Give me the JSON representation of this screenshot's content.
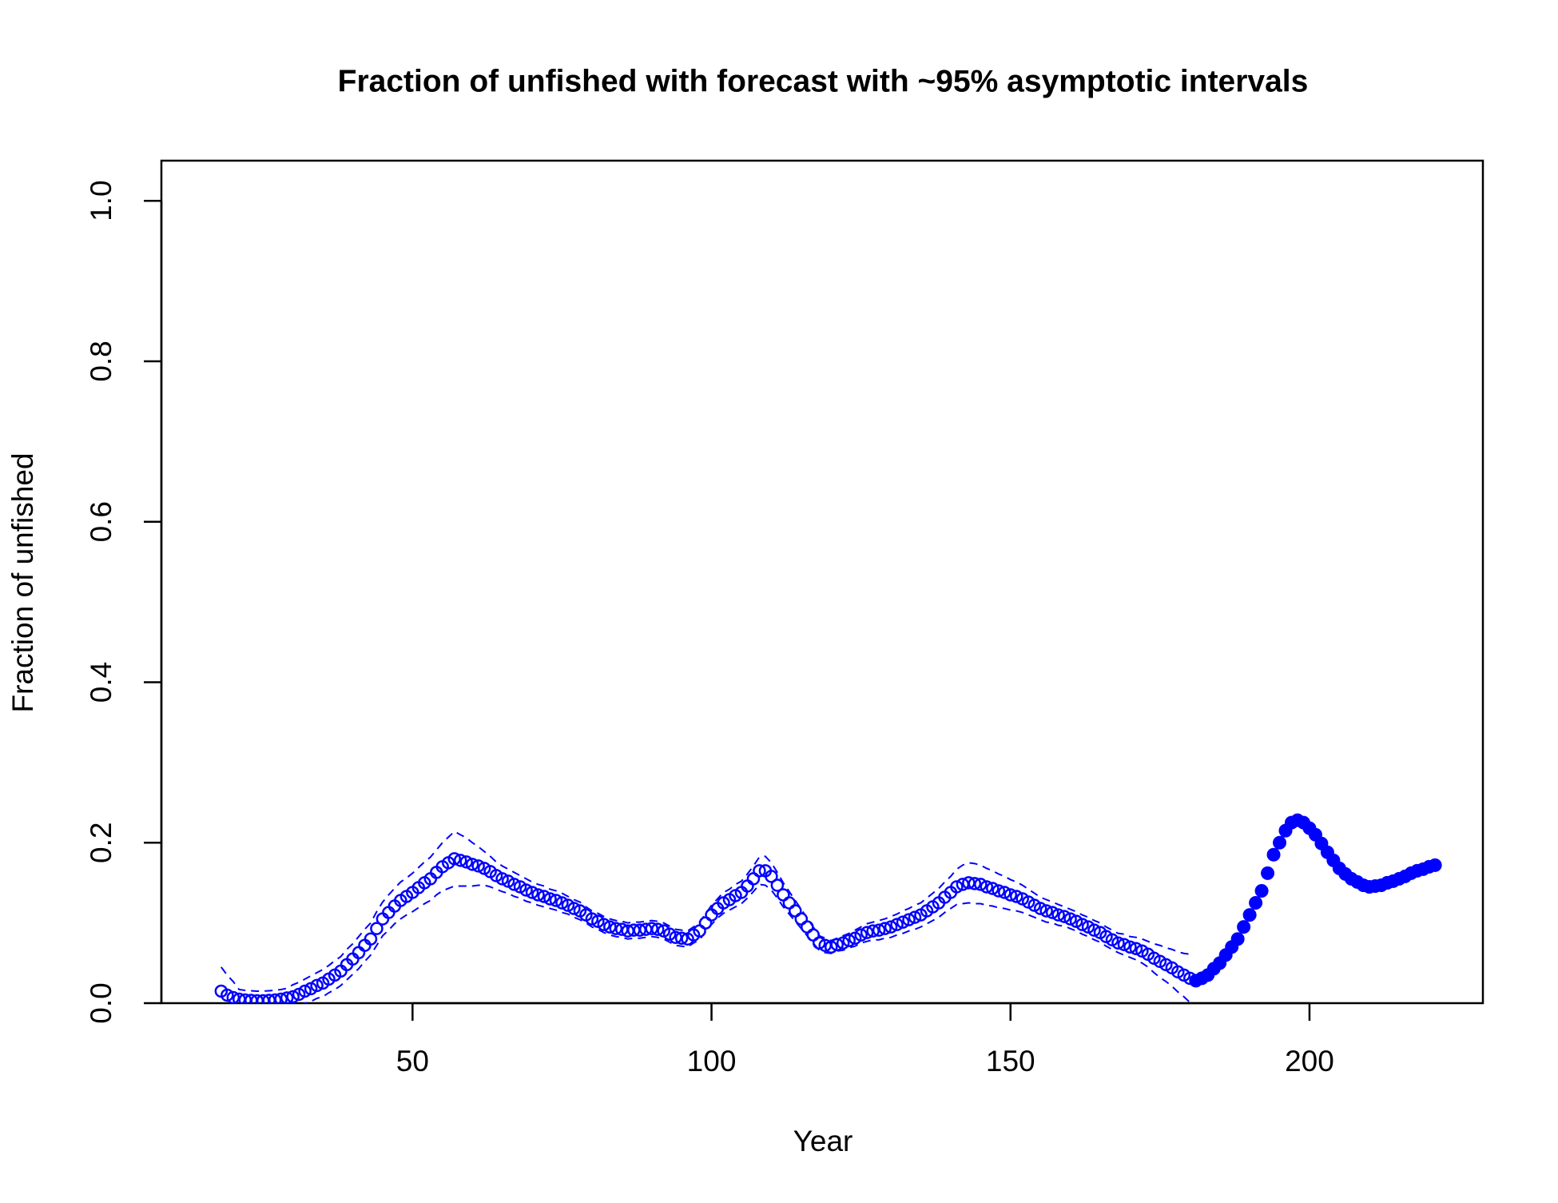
{
  "chart_data": {
    "type": "line",
    "title": "Fraction of unfished with forecast with ~95% asymptotic intervals",
    "xlabel": "Year",
    "ylabel": "Fraction of unfished",
    "xlim": [
      8,
      229
    ],
    "ylim": [
      0,
      1.05
    ],
    "xticks": [
      50,
      100,
      150,
      200
    ],
    "yticks": [
      {
        "value": 0,
        "label": "0.0"
      },
      {
        "value": 0.2,
        "label": "0.2"
      },
      {
        "value": 0.4,
        "label": "0.4"
      },
      {
        "value": 0.6,
        "label": "0.6"
      },
      {
        "value": 0.8,
        "label": "0.8"
      },
      {
        "value": 1,
        "label": "1.0"
      }
    ],
    "series": [
      {
        "color": "#0000ff",
        "marker": "open",
        "x": [
          18,
          19,
          20,
          21,
          22,
          23,
          24,
          25,
          26,
          27,
          28,
          29,
          30,
          31,
          32,
          33,
          34,
          35,
          36,
          37,
          38,
          39,
          40,
          41,
          42,
          43,
          44,
          45,
          46,
          47,
          48,
          49,
          50,
          51,
          52,
          53,
          54,
          55,
          56,
          57,
          58,
          59,
          60,
          61,
          62,
          63,
          64,
          65,
          66,
          67,
          68,
          69,
          70,
          71,
          72,
          73,
          74,
          75,
          76,
          77,
          78,
          79,
          80,
          81,
          82,
          83,
          84,
          85,
          86,
          87,
          88,
          89,
          90,
          91,
          92,
          93,
          94,
          95,
          96,
          97,
          98,
          99,
          100,
          101,
          102,
          103,
          104,
          105,
          106,
          107,
          108,
          109,
          110,
          111,
          112,
          113,
          114,
          115,
          116,
          117,
          118,
          119,
          120,
          121,
          122,
          123,
          124,
          125,
          126,
          127,
          128,
          129,
          130,
          131,
          132,
          133,
          134,
          135,
          136,
          137,
          138,
          139,
          140,
          141,
          142,
          143,
          144,
          145,
          146,
          147,
          148,
          149,
          150,
          151,
          152,
          153,
          154,
          155,
          156,
          157,
          158,
          159,
          160,
          161,
          162,
          163,
          164,
          165,
          166,
          167,
          168,
          169,
          170,
          171,
          172,
          173,
          174,
          175,
          176,
          177,
          178,
          179,
          180
        ],
        "values": [
          0.015,
          0.01,
          0.007,
          0.005,
          0.004,
          0.0035,
          0.003,
          0.003,
          0.0035,
          0.004,
          0.005,
          0.0065,
          0.008,
          0.011,
          0.015,
          0.018,
          0.022,
          0.025,
          0.03,
          0.035,
          0.04,
          0.048,
          0.055,
          0.063,
          0.072,
          0.08,
          0.093,
          0.105,
          0.113,
          0.121,
          0.128,
          0.133,
          0.138,
          0.144,
          0.15,
          0.155,
          0.163,
          0.17,
          0.175,
          0.18,
          0.178,
          0.176,
          0.173,
          0.171,
          0.168,
          0.164,
          0.159,
          0.155,
          0.152,
          0.148,
          0.145,
          0.141,
          0.138,
          0.135,
          0.133,
          0.13,
          0.128,
          0.125,
          0.122,
          0.118,
          0.115,
          0.11,
          0.105,
          0.102,
          0.098,
          0.095,
          0.093,
          0.092,
          0.09,
          0.091,
          0.091,
          0.092,
          0.093,
          0.092,
          0.09,
          0.086,
          0.082,
          0.081,
          0.08,
          0.085,
          0.09,
          0.1,
          0.11,
          0.118,
          0.125,
          0.129,
          0.134,
          0.138,
          0.146,
          0.155,
          0.165,
          0.165,
          0.158,
          0.147,
          0.135,
          0.125,
          0.115,
          0.105,
          0.095,
          0.085,
          0.075,
          0.072,
          0.07,
          0.073,
          0.075,
          0.078,
          0.081,
          0.085,
          0.088,
          0.09,
          0.091,
          0.093,
          0.095,
          0.098,
          0.101,
          0.104,
          0.107,
          0.11,
          0.115,
          0.12,
          0.125,
          0.132,
          0.138,
          0.145,
          0.148,
          0.15,
          0.149,
          0.148,
          0.145,
          0.143,
          0.14,
          0.138,
          0.135,
          0.133,
          0.13,
          0.126,
          0.122,
          0.118,
          0.115,
          0.113,
          0.11,
          0.108,
          0.105,
          0.102,
          0.098,
          0.095,
          0.091,
          0.088,
          0.083,
          0.079,
          0.075,
          0.073,
          0.07,
          0.068,
          0.065,
          0.061,
          0.056,
          0.052,
          0.048,
          0.044,
          0.039,
          0.035,
          0.031
        ],
        "upper": [
          0.045,
          0.035,
          0.027,
          0.017,
          0.016,
          0.0155,
          0.015,
          0.015,
          0.0155,
          0.016,
          0.017,
          0.0185,
          0.023,
          0.026,
          0.03,
          0.034,
          0.038,
          0.042,
          0.047,
          0.053,
          0.058,
          0.067,
          0.074,
          0.083,
          0.092,
          0.1,
          0.114,
          0.126,
          0.135,
          0.143,
          0.151,
          0.156,
          0.162,
          0.169,
          0.176,
          0.182,
          0.191,
          0.2,
          0.207,
          0.214,
          0.21,
          0.206,
          0.2,
          0.195,
          0.189,
          0.183,
          0.176,
          0.171,
          0.167,
          0.163,
          0.159,
          0.155,
          0.151,
          0.148,
          0.146,
          0.142,
          0.14,
          0.137,
          0.133,
          0.129,
          0.126,
          0.12,
          0.115,
          0.112,
          0.108,
          0.105,
          0.103,
          0.102,
          0.1,
          0.101,
          0.101,
          0.102,
          0.103,
          0.102,
          0.1,
          0.096,
          0.092,
          0.091,
          0.09,
          0.095,
          0.101,
          0.111,
          0.122,
          0.13,
          0.138,
          0.142,
          0.148,
          0.152,
          0.161,
          0.171,
          0.182,
          0.183,
          0.175,
          0.163,
          0.15,
          0.139,
          0.128,
          0.117,
          0.106,
          0.095,
          0.084,
          0.081,
          0.078,
          0.081,
          0.084,
          0.087,
          0.091,
          0.095,
          0.099,
          0.101,
          0.103,
          0.105,
          0.108,
          0.111,
          0.115,
          0.118,
          0.122,
          0.125,
          0.131,
          0.137,
          0.143,
          0.151,
          0.158,
          0.167,
          0.172,
          0.175,
          0.174,
          0.172,
          0.168,
          0.165,
          0.161,
          0.158,
          0.154,
          0.151,
          0.147,
          0.142,
          0.137,
          0.132,
          0.129,
          0.126,
          0.123,
          0.12,
          0.117,
          0.114,
          0.11,
          0.107,
          0.103,
          0.1,
          0.095,
          0.091,
          0.087,
          0.086,
          0.083,
          0.082,
          0.08,
          0.077,
          0.074,
          0.072,
          0.069,
          0.067,
          0.064,
          0.062,
          0.061
        ],
        "lower": [
          -0.015,
          -0.015,
          -0.013,
          -0.007,
          -0.008,
          -0.0085,
          -0.009,
          -0.009,
          -0.0085,
          -0.008,
          -0.007,
          -0.0055,
          -0.007,
          -0.004,
          0,
          0.002,
          0.006,
          0.008,
          0.013,
          0.017,
          0.022,
          0.029,
          0.036,
          0.043,
          0.052,
          0.06,
          0.072,
          0.084,
          0.091,
          0.099,
          0.105,
          0.11,
          0.114,
          0.119,
          0.124,
          0.128,
          0.135,
          0.14,
          0.143,
          0.146,
          0.146,
          0.146,
          0.146,
          0.147,
          0.147,
          0.145,
          0.142,
          0.139,
          0.137,
          0.133,
          0.131,
          0.127,
          0.125,
          0.122,
          0.12,
          0.118,
          0.116,
          0.113,
          0.111,
          0.107,
          0.104,
          0.1,
          0.095,
          0.092,
          0.088,
          0.085,
          0.083,
          0.082,
          0.08,
          0.081,
          0.081,
          0.082,
          0.083,
          0.082,
          0.08,
          0.076,
          0.072,
          0.071,
          0.07,
          0.075,
          0.079,
          0.089,
          0.098,
          0.106,
          0.112,
          0.116,
          0.12,
          0.124,
          0.131,
          0.139,
          0.148,
          0.147,
          0.141,
          0.131,
          0.12,
          0.111,
          0.102,
          0.093,
          0.084,
          0.075,
          0.066,
          0.063,
          0.062,
          0.065,
          0.066,
          0.069,
          0.071,
          0.075,
          0.077,
          0.079,
          0.079,
          0.081,
          0.082,
          0.085,
          0.087,
          0.09,
          0.092,
          0.095,
          0.099,
          0.103,
          0.107,
          0.113,
          0.118,
          0.123,
          0.124,
          0.125,
          0.124,
          0.124,
          0.122,
          0.121,
          0.119,
          0.118,
          0.116,
          0.115,
          0.113,
          0.11,
          0.107,
          0.104,
          0.101,
          0.1,
          0.097,
          0.096,
          0.093,
          0.09,
          0.086,
          0.083,
          0.079,
          0.076,
          0.071,
          0.067,
          0.063,
          0.06,
          0.057,
          0.054,
          0.05,
          0.045,
          0.038,
          0.032,
          0.027,
          0.021,
          0.014,
          0.008,
          0.001
        ]
      },
      {
        "color": "#0000ff",
        "marker": "filled",
        "x": [
          181,
          182,
          183,
          184,
          185,
          186,
          187,
          188,
          189,
          190,
          191,
          192,
          193,
          194,
          195,
          196,
          197,
          198,
          199,
          200,
          201,
          202,
          203,
          204,
          205,
          206,
          207,
          208,
          209,
          210,
          211,
          212,
          213,
          214,
          215,
          216,
          217,
          218,
          219,
          220,
          221
        ],
        "values": [
          0.028,
          0.031,
          0.035,
          0.043,
          0.05,
          0.06,
          0.07,
          0.08,
          0.095,
          0.11,
          0.125,
          0.14,
          0.162,
          0.185,
          0.2,
          0.215,
          0.225,
          0.228,
          0.225,
          0.218,
          0.21,
          0.199,
          0.188,
          0.178,
          0.168,
          0.161,
          0.155,
          0.151,
          0.147,
          0.145,
          0.146,
          0.147,
          0.15,
          0.152,
          0.155,
          0.158,
          0.162,
          0.165,
          0.167,
          0.17,
          0.172
        ]
      }
    ]
  }
}
